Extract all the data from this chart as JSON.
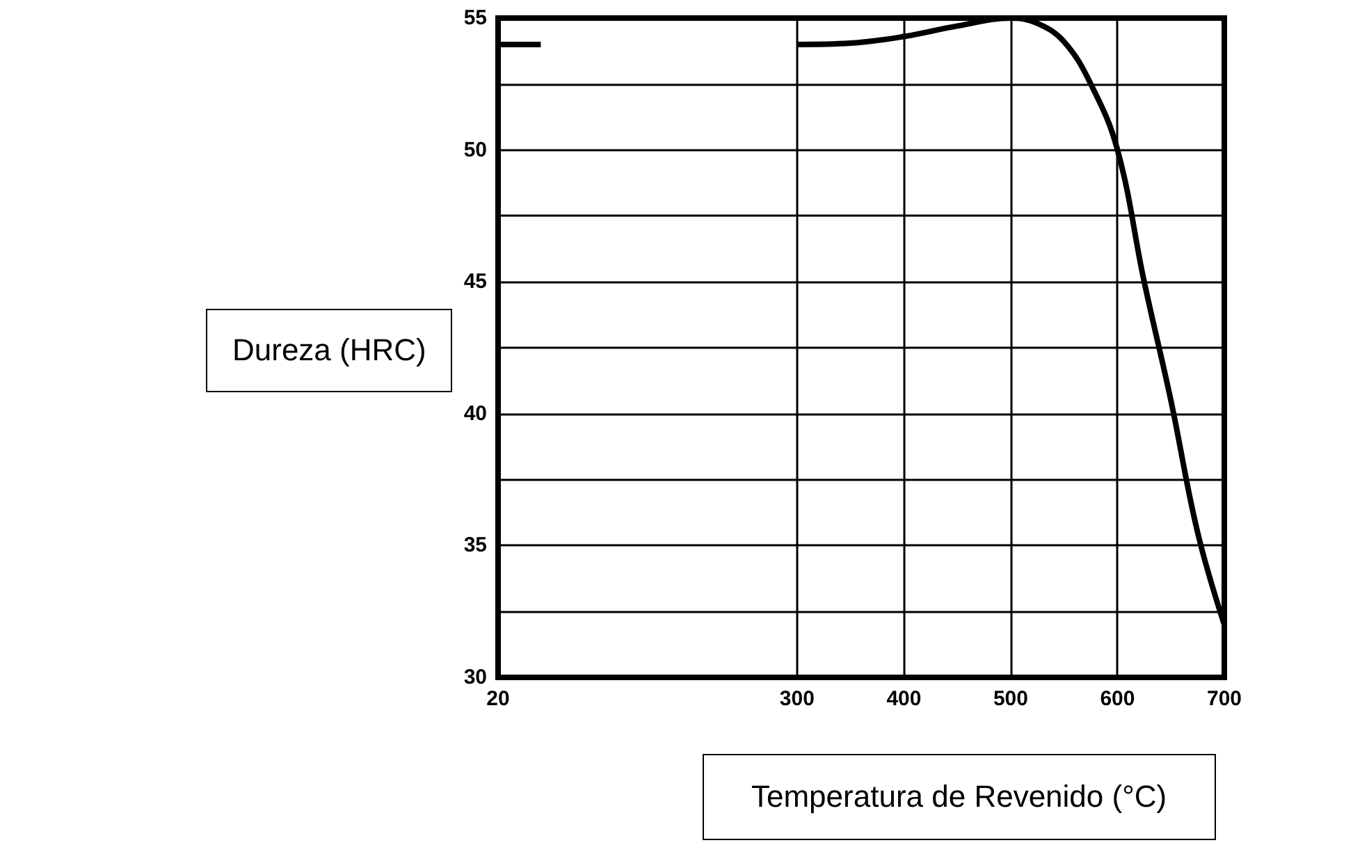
{
  "chart_data": {
    "type": "line",
    "xlabel": "Temperatura de Revenido (°C)",
    "ylabel": "Dureza (HRC)",
    "xlim": [
      20,
      700
    ],
    "xticks": [
      20,
      300,
      400,
      500,
      600,
      700
    ],
    "ylim": [
      30,
      55
    ],
    "yticks": [
      30,
      35,
      40,
      45,
      50,
      55
    ],
    "grid": true,
    "series": [
      {
        "color": "#000000",
        "x": [
          20,
          60
        ],
        "values": [
          54,
          54
        ]
      },
      {
        "color": "#000000",
        "x": [
          300,
          350,
          400,
          450,
          500,
          525,
          550,
          575,
          600,
          625,
          650,
          675,
          700
        ],
        "values": [
          54,
          54.05,
          54.3,
          54.7,
          55,
          54.8,
          54.1,
          52.5,
          50,
          45,
          40.5,
          35.5,
          32
        ]
      }
    ]
  }
}
